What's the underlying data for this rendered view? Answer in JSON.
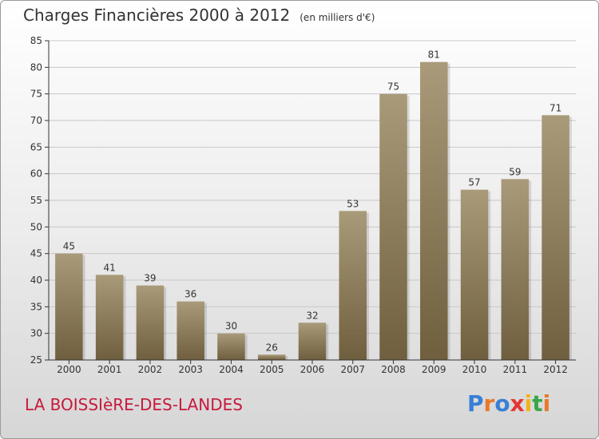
{
  "header": {
    "title": "Charges Financières 2000 à 2012",
    "unit": "(en milliers d'€)"
  },
  "footer": {
    "commune": "LA BOISSIèRE-DES-LANDES",
    "brand": "Proxiti",
    "brand_colors": [
      "#3a7fd5",
      "#e8782a",
      "#3a7fd5",
      "#e53434",
      "#f2b21b",
      "#38a64a",
      "#e8782a"
    ]
  },
  "colors": {
    "bar_top": "#a99a7a",
    "bar_bottom": "#6f5f3f",
    "grid": "#c8c8c8",
    "axis": "#333333"
  },
  "chart_data": {
    "type": "bar",
    "categories": [
      "2000",
      "2001",
      "2002",
      "2003",
      "2004",
      "2005",
      "2006",
      "2007",
      "2008",
      "2009",
      "2010",
      "2011",
      "2012"
    ],
    "values": [
      45,
      41,
      39,
      36,
      30,
      26,
      32,
      53,
      75,
      81,
      57,
      59,
      71
    ],
    "ylim": [
      25,
      85
    ],
    "yticks": [
      25,
      30,
      35,
      40,
      45,
      50,
      55,
      60,
      65,
      70,
      75,
      80,
      85
    ],
    "grid": true
  }
}
